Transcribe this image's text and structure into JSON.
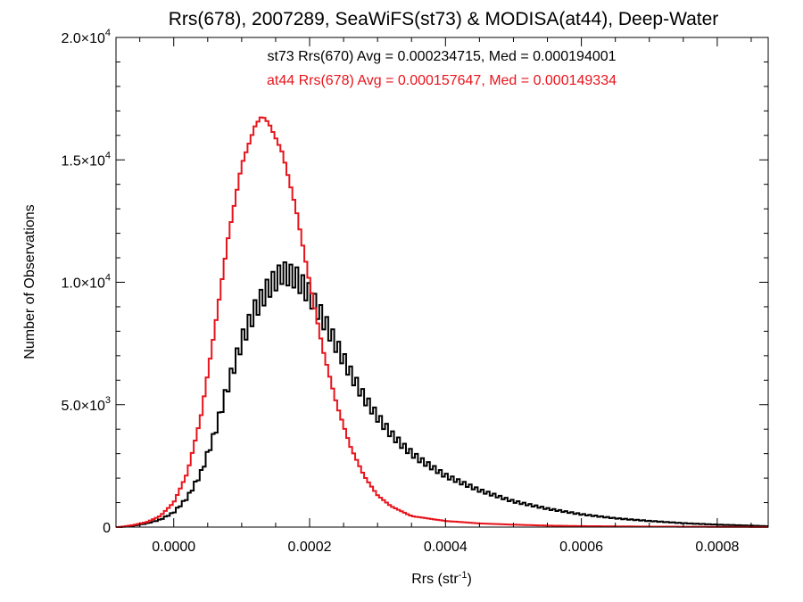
{
  "chart_data": {
    "type": "line",
    "title": "Rrs(678), 2007289, SeaWiFS(st73) & MODISA(at44), Deep-Water",
    "xlabel_main": "Rrs (str",
    "xlabel_sup": "-1",
    "xlabel_close": ")",
    "ylabel": "Number of Observations",
    "xlim": [
      -8.5e-05,
      0.000875
    ],
    "ylim": [
      0,
      20000
    ],
    "grid": false,
    "x_ticks": [
      {
        "value": 0.0,
        "label": "0.0000"
      },
      {
        "value": 0.0002,
        "label": "0.0002"
      },
      {
        "value": 0.0004,
        "label": "0.0004"
      },
      {
        "value": 0.0006,
        "label": "0.0006"
      },
      {
        "value": 0.0008,
        "label": "0.0008"
      }
    ],
    "y_ticks": [
      {
        "value": 0,
        "mantissa": "0",
        "exp": ""
      },
      {
        "value": 5000,
        "mantissa": "5.0×10",
        "exp": "3"
      },
      {
        "value": 10000,
        "mantissa": "1.0×10",
        "exp": "4"
      },
      {
        "value": 15000,
        "mantissa": "1.5×10",
        "exp": "4"
      },
      {
        "value": 20000,
        "mantissa": "2.0×10",
        "exp": "4"
      }
    ],
    "annotations": [
      {
        "text": "st73 Rrs(670) Avg = 0.000234715, Med = 0.000194001",
        "color": "#000000"
      },
      {
        "text": "at44 Rrs(678) Avg = 0.000157647, Med = 0.000149334",
        "color": "#e8141c"
      }
    ],
    "series": [
      {
        "color": "#000000",
        "style": "step-zigzag",
        "points": [
          [
            -8e-05,
            0
          ],
          [
            -6e-05,
            50
          ],
          [
            -4e-05,
            150
          ],
          [
            -2e-05,
            300
          ],
          [
            0.0,
            600
          ],
          [
            2e-05,
            1200
          ],
          [
            4e-05,
            2200
          ],
          [
            6e-05,
            3800
          ],
          [
            8e-05,
            5800
          ],
          [
            0.0001,
            7600
          ],
          [
            0.00012,
            8900
          ],
          [
            0.00014,
            9800
          ],
          [
            0.00016,
            10400
          ],
          [
            0.00018,
            10200
          ],
          [
            0.0002,
            9500
          ],
          [
            0.00022,
            8500
          ],
          [
            0.00024,
            7400
          ],
          [
            0.00026,
            6300
          ],
          [
            0.00028,
            5300
          ],
          [
            0.0003,
            4500
          ],
          [
            0.00032,
            3800
          ],
          [
            0.00034,
            3250
          ],
          [
            0.00036,
            2800
          ],
          [
            0.0004,
            2100
          ],
          [
            0.00045,
            1500
          ],
          [
            0.0005,
            1050
          ],
          [
            0.00055,
            750
          ],
          [
            0.0006,
            520
          ],
          [
            0.00065,
            360
          ],
          [
            0.0007,
            250
          ],
          [
            0.00075,
            160
          ],
          [
            0.0008,
            100
          ],
          [
            0.00085,
            60
          ],
          [
            0.00087,
            40
          ]
        ]
      },
      {
        "color": "#e8141c",
        "style": "step",
        "points": [
          [
            -8e-05,
            0
          ],
          [
            -6e-05,
            80
          ],
          [
            -4e-05,
            200
          ],
          [
            -2e-05,
            450
          ],
          [
            0.0,
            1000
          ],
          [
            2e-05,
            2200
          ],
          [
            4e-05,
            4500
          ],
          [
            6e-05,
            8000
          ],
          [
            8e-05,
            11800
          ],
          [
            0.0001,
            14800
          ],
          [
            0.00012,
            16400
          ],
          [
            0.00013,
            16800
          ],
          [
            0.00014,
            16500
          ],
          [
            0.00016,
            15300
          ],
          [
            0.00018,
            13000
          ],
          [
            0.0002,
            10000
          ],
          [
            0.00022,
            7200
          ],
          [
            0.00024,
            5000
          ],
          [
            0.00026,
            3300
          ],
          [
            0.00028,
            2100
          ],
          [
            0.0003,
            1300
          ],
          [
            0.00032,
            850
          ],
          [
            0.00035,
            450
          ],
          [
            0.0004,
            250
          ],
          [
            0.00045,
            150
          ],
          [
            0.0005,
            100
          ],
          [
            0.00055,
            60
          ],
          [
            0.0006,
            40
          ],
          [
            0.0007,
            20
          ],
          [
            0.0008,
            10
          ],
          [
            0.00087,
            5
          ]
        ]
      }
    ]
  }
}
